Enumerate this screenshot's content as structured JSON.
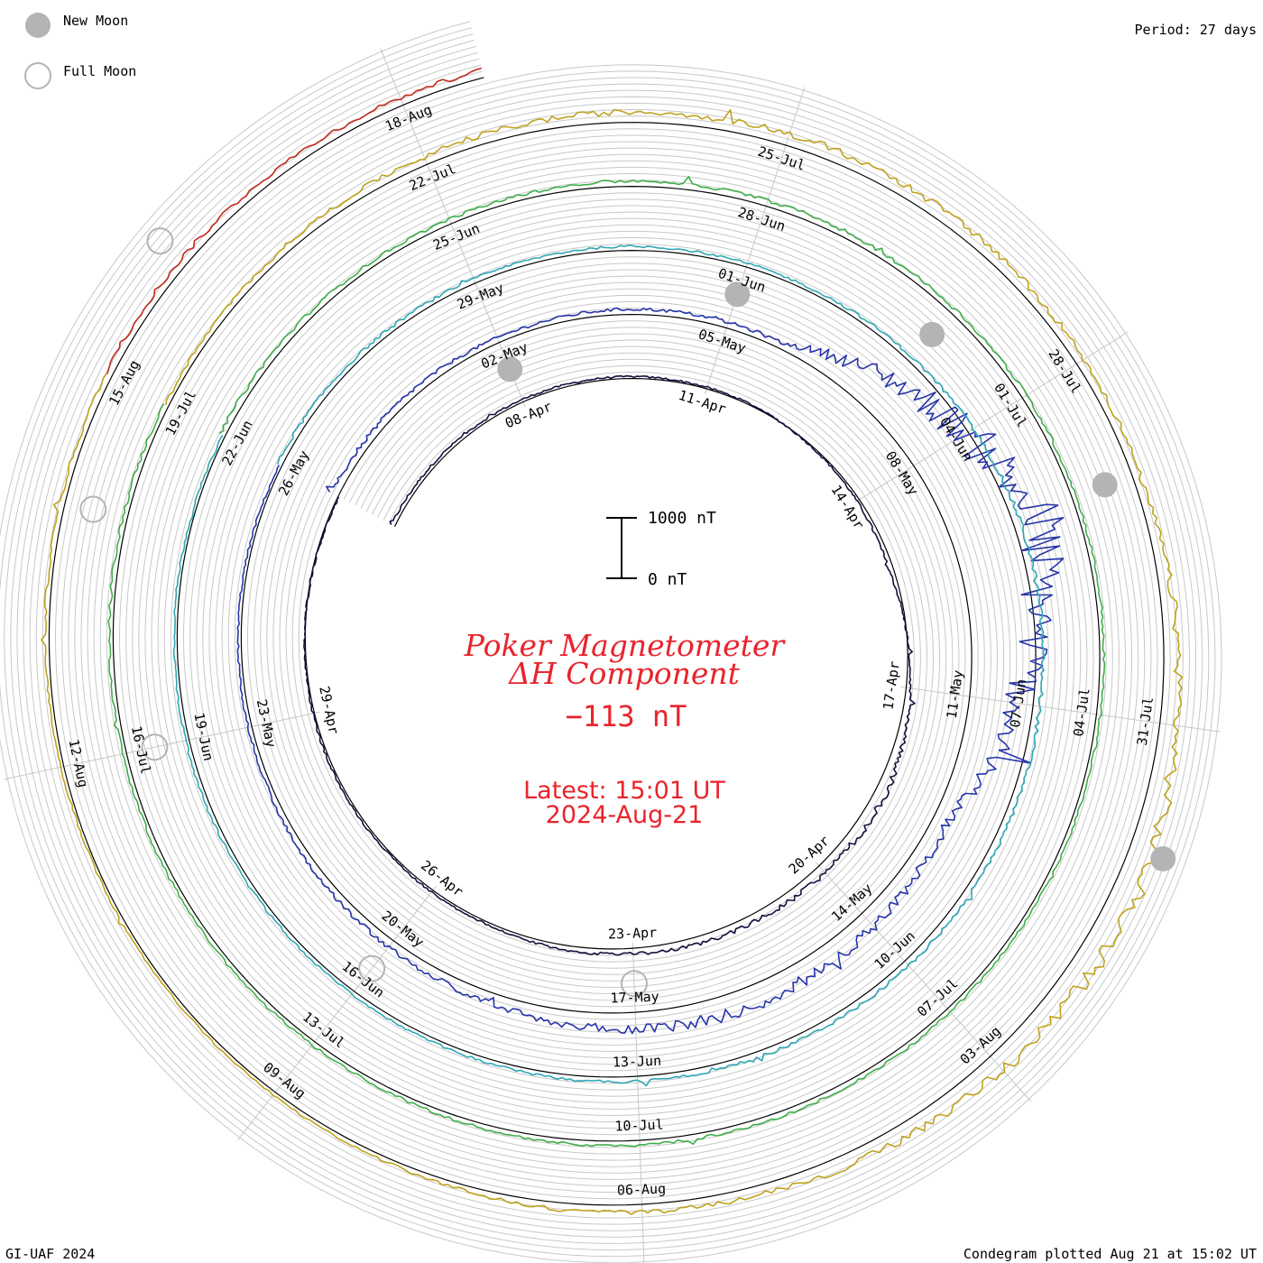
{
  "header": {
    "period_label": "Period: 27 days",
    "legend": {
      "new_moon": "New Moon",
      "full_moon": "Full Moon"
    }
  },
  "center": {
    "title_line1": "Poker Magnetometer",
    "title_line2": "ΔH Component",
    "current_value": "−113 nT",
    "latest_line1": "Latest: 15:01 UT",
    "latest_line2": "2024-Aug-21",
    "scale_top_label": "1000 nT",
    "scale_bottom_label": "0 nT"
  },
  "footer": {
    "credit": "GI-UAF 2024",
    "plotted": "Condegram plotted Aug 21 at 15:02 UT"
  },
  "colors": {
    "title_red": "#e8242c",
    "grid": "#c8c8c8",
    "baseline": "#000000",
    "new_moon": "#b4b4b4"
  },
  "chart_data": {
    "type": "line",
    "form": "condegram spiral",
    "period_days": 27,
    "scale_nT": [
      0,
      1000
    ],
    "series": [
      {
        "revolution": 1,
        "start": "2024-04-05",
        "color": "#160f3c",
        "date_labels": [
          "08-Apr",
          "11-Apr",
          "14-Apr",
          "17-Apr",
          "20-Apr",
          "23-Apr",
          "26-Apr",
          "29-Apr"
        ],
        "approx_values_nT": [
          60,
          40,
          20,
          -80,
          180,
          120,
          40,
          30,
          -20
        ]
      },
      {
        "revolution": 2,
        "start": "2024-05-02",
        "color": "#2735a8",
        "date_labels": [
          "02-May",
          "05-May",
          "08-May",
          "11-May",
          "14-May",
          "17-May",
          "20-May",
          "23-May",
          "26-May"
        ],
        "approx_values_nT": [
          120,
          80,
          100,
          1500,
          250,
          330,
          150,
          60,
          40
        ]
      },
      {
        "revolution": 3,
        "start": "2024-05-29",
        "color": "#2ea7b5",
        "date_labels": [
          "29-May",
          "01-Jun",
          "04-Jun",
          "07-Jun",
          "10-Jun",
          "13-Jun",
          "16-Jun",
          "19-Jun",
          "22-Jun"
        ],
        "approx_values_nT": [
          80,
          70,
          60,
          120,
          110,
          90,
          60,
          60,
          40
        ]
      },
      {
        "revolution": 4,
        "start": "2024-06-25",
        "color": "#3fae4a",
        "date_labels": [
          "25-Jun",
          "28-Jun",
          "01-Jul",
          "04-Jul",
          "07-Jul",
          "10-Jul",
          "13-Jul",
          "16-Jul",
          "19-Jul"
        ],
        "approx_values_nT": [
          90,
          80,
          100,
          70,
          60,
          80,
          70,
          60,
          80
        ]
      },
      {
        "revolution": 5,
        "start": "2024-07-22",
        "color": "#c0a21e",
        "date_labels": [
          "22-Jul",
          "25-Jul",
          "28-Jul",
          "31-Jul",
          "03-Aug",
          "06-Aug",
          "09-Aug",
          "12-Aug",
          "15-Aug"
        ],
        "approx_values_nT": [
          60,
          150,
          200,
          120,
          420,
          160,
          60,
          40,
          100
        ]
      },
      {
        "revolution": 6,
        "start": "2024-08-18",
        "color": "#c02a1c",
        "date_labels": [
          "18-Aug",
          "21-Aug"
        ],
        "approx_values_nT": [
          120,
          150,
          -113
        ]
      }
    ],
    "new_moon_dates": [
      "2024-04-08",
      "2024-05-08",
      "2024-06-06",
      "2024-07-05",
      "2024-08-04"
    ],
    "full_moon_dates": [
      "2024-04-23",
      "2024-05-23",
      "2024-06-22",
      "2024-07-21",
      "2024-08-19"
    ]
  }
}
